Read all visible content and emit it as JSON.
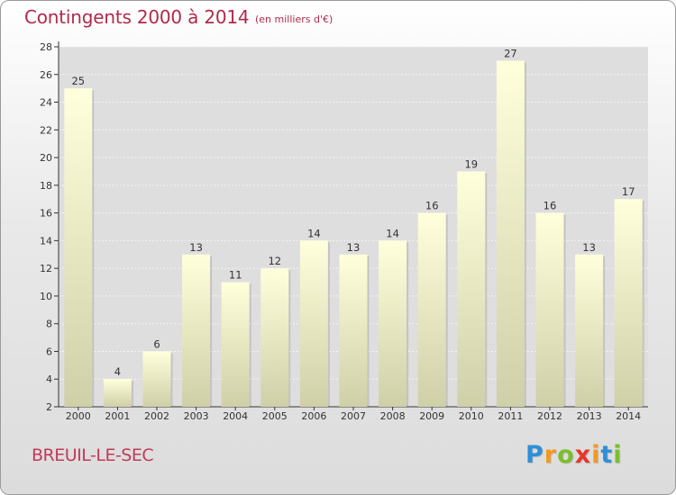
{
  "title": "Contingents 2000 à 2014",
  "subtitle": "(en milliers d'€)",
  "place": "BREUIL-LE-SEC",
  "logo": {
    "letters": [
      "P",
      "r",
      "o",
      "x",
      "i",
      "t",
      "i"
    ],
    "colors": [
      "#2f8fd6",
      "#f39a1e",
      "#7cbf2b",
      "#e8362a",
      "#f39a1e",
      "#2f8fd6",
      "#7cbf2b"
    ]
  },
  "colors": {
    "title": "#b22a4a",
    "bar_top": "#ffffdc",
    "bar_bottom": "#cfcfa8"
  },
  "chart_data": {
    "type": "bar",
    "title": "Contingents 2000 à 2014",
    "subtitle": "(en milliers d'€)",
    "categories": [
      "2000",
      "2001",
      "2002",
      "2003",
      "2004",
      "2005",
      "2006",
      "2007",
      "2008",
      "2009",
      "2010",
      "2011",
      "2012",
      "2013",
      "2014"
    ],
    "values": [
      25,
      4,
      6,
      13,
      11,
      12,
      14,
      13,
      14,
      16,
      19,
      27,
      16,
      13,
      17
    ],
    "ylim": [
      2,
      28
    ],
    "yticks": [
      2,
      4,
      6,
      8,
      10,
      12,
      14,
      16,
      18,
      20,
      22,
      24,
      26,
      28
    ],
    "grid": true,
    "xlabel": "",
    "ylabel": ""
  }
}
